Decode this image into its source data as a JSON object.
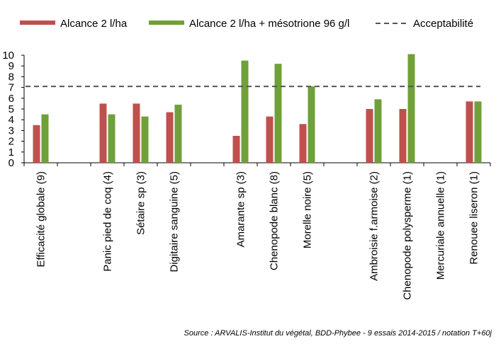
{
  "chart_data": {
    "type": "bar",
    "title": "",
    "xlabel": "",
    "ylabel": "",
    "ylim": [
      0,
      10
    ],
    "yticks": [
      0,
      1,
      2,
      3,
      4,
      5,
      6,
      7,
      8,
      9,
      10
    ],
    "grid": false,
    "legend_position": "top",
    "categories": [
      "Efficacité globale (9)",
      "",
      "Panic pied de coq (4)",
      "Sétaire sp (3)",
      "Digitaire sanguine (5)",
      "",
      "Amarante sp (3)",
      "Chenopode blanc (8)",
      "Morelle noire (5)",
      "",
      "Ambroisie f.armoise (2)",
      "Chenopode polysperme (1)",
      "Mercuriale annuelle (1)",
      "Renouee liseron (1)"
    ],
    "series": [
      {
        "name": "Alcance 2 l/ha",
        "color": "#c0504d",
        "values": [
          3.5,
          null,
          5.5,
          5.5,
          4.7,
          null,
          2.5,
          4.3,
          3.6,
          null,
          5.0,
          5.0,
          null,
          5.7
        ]
      },
      {
        "name": "Alcance 2 l/ha + mésotrione 96 g/l",
        "color": "#70a03a",
        "values": [
          4.5,
          null,
          4.5,
          4.3,
          5.4,
          null,
          9.5,
          9.2,
          7.1,
          null,
          5.9,
          10.1,
          null,
          5.7
        ]
      }
    ],
    "reference_line": {
      "name": "Acceptabilité",
      "value": 7.1,
      "style": "dashed",
      "color": "#555555"
    },
    "source": "Source : ARVALIS-Institut du végétal, BDD-Phybee - 9 essais 2014-2015 / notation T+60j"
  }
}
